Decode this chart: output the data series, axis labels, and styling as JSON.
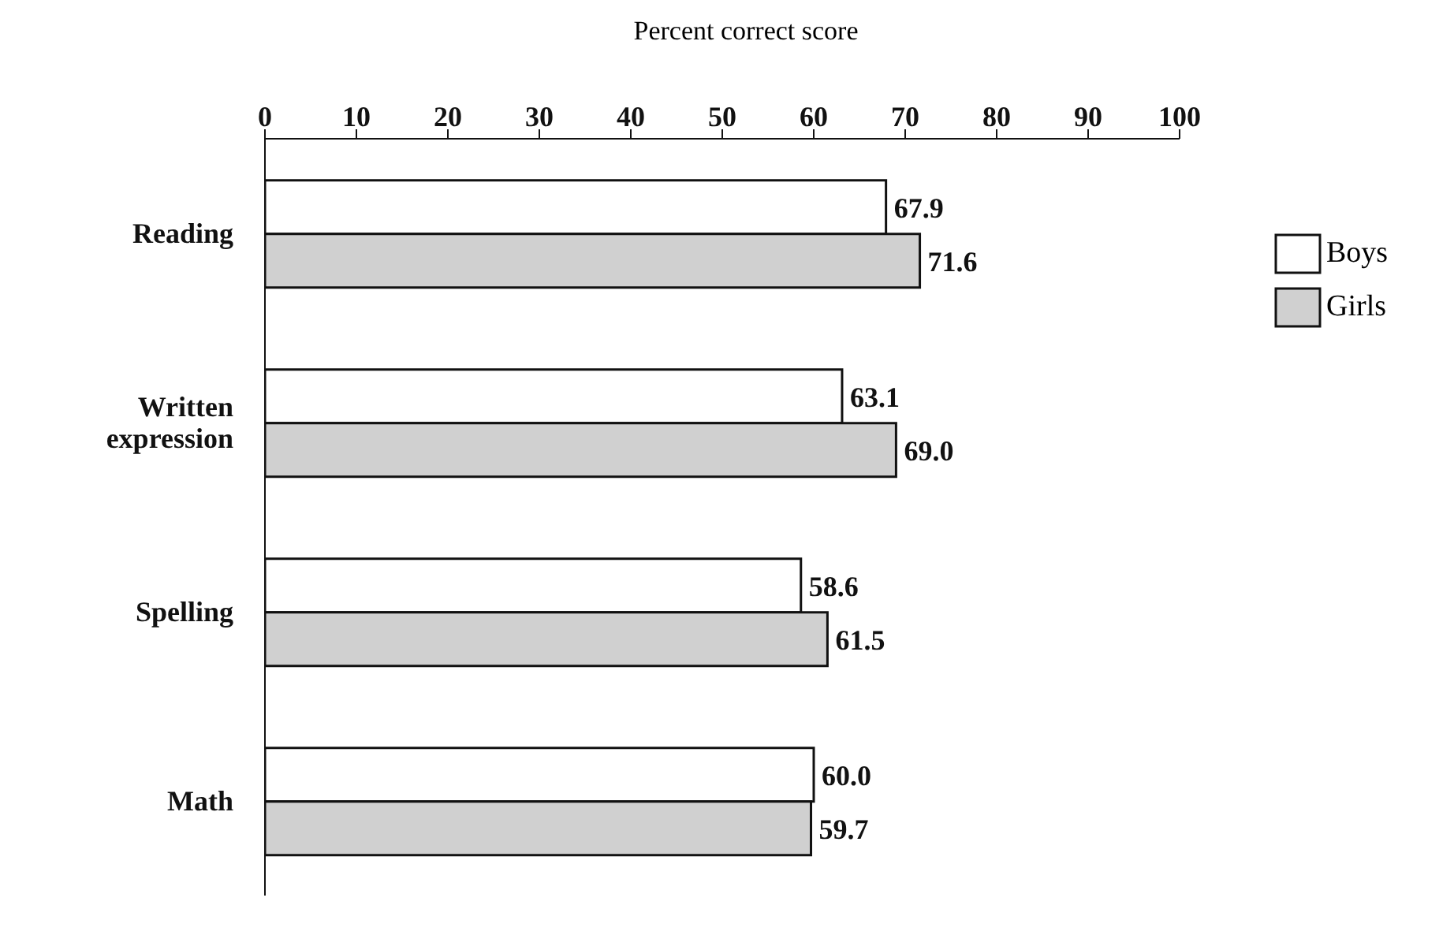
{
  "chart_data": {
    "type": "bar",
    "orientation": "horizontal",
    "xlabel": "Percent correct score",
    "categories": [
      "Reading",
      "Written expression",
      "Spelling",
      "Math"
    ],
    "series": [
      {
        "name": "Boys",
        "color": "#ffffff",
        "values": [
          67.9,
          63.1,
          58.6,
          60.0
        ],
        "value_labels": [
          "67.9",
          "63.1",
          "58.6",
          "60.0"
        ]
      },
      {
        "name": "Girls",
        "color": "#d0d0d0",
        "values": [
          71.6,
          69.0,
          61.5,
          59.7
        ],
        "value_labels": [
          "71.6",
          "69.0",
          "61.5",
          "59.7"
        ]
      }
    ],
    "xlim": [
      0,
      100
    ],
    "xticks": [
      0,
      10,
      20,
      30,
      40,
      50,
      60,
      70,
      80,
      90,
      100
    ],
    "grid": false,
    "legend": "right"
  }
}
